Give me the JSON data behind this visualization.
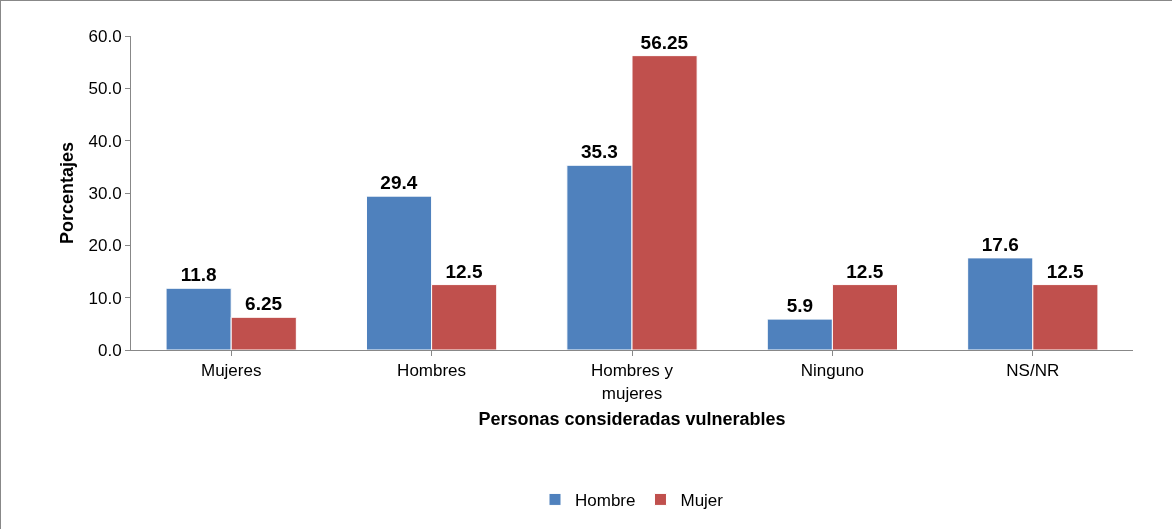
{
  "chart_data": {
    "type": "bar",
    "xlabel": "Personas consideradas vulnerables",
    "ylabel": "Porcentajes",
    "categories": [
      "Mujeres",
      "Hombres",
      "Hombres y mujeres",
      "Ninguno",
      "NS/NR"
    ],
    "series": [
      {
        "name": "Hombre",
        "color": "#4f81bd",
        "values": [
          11.8,
          29.4,
          35.3,
          5.9,
          17.6
        ]
      },
      {
        "name": "Mujer",
        "color": "#c0504d",
        "values": [
          6.25,
          12.5,
          56.25,
          12.5,
          12.5
        ]
      }
    ],
    "ylim": [
      0,
      60
    ],
    "yticks": [
      {
        "value": 0,
        "label": "0.0"
      },
      {
        "value": 10,
        "label": "10.0"
      },
      {
        "value": 20,
        "label": "20.0"
      },
      {
        "value": 30,
        "label": "30.0"
      },
      {
        "value": 40,
        "label": "40.0"
      },
      {
        "value": 50,
        "label": "50.0"
      },
      {
        "value": 60,
        "label": "60.0"
      }
    ],
    "data_labels": true,
    "grid": false,
    "legend": "bottom"
  }
}
